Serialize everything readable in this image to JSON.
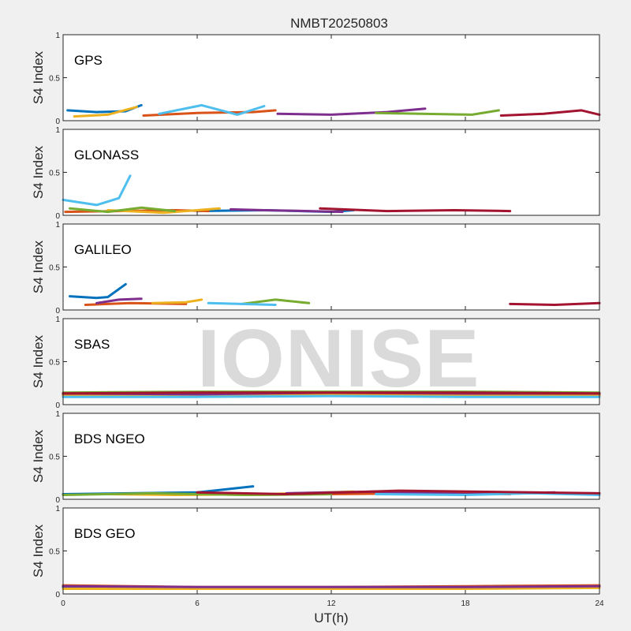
{
  "figure": {
    "title": "NMBT20250803",
    "xlabel": "UT(h)",
    "watermark": "IONISE"
  },
  "palette": [
    "#0072BD",
    "#D95319",
    "#EDB120",
    "#7E2F8E",
    "#77AC30",
    "#4DBEEE",
    "#A2142F"
  ],
  "chart_data": [
    {
      "type": "scatter",
      "panel_label": "GPS",
      "ylabel": "S4 Index",
      "xlim": [
        0,
        24
      ],
      "ylim": [
        0,
        1
      ],
      "xticks": [
        0,
        6,
        12,
        18,
        24
      ],
      "yticks": [
        0,
        0.5,
        1
      ],
      "ytick_labels": [
        "0",
        "0.5",
        "1"
      ],
      "series": [
        {
          "x": [
            0.2,
            1.5,
            2.8,
            3.5
          ],
          "y": [
            0.12,
            0.1,
            0.11,
            0.18
          ]
        },
        {
          "x": [
            3.6,
            6.0,
            8.5,
            9.5
          ],
          "y": [
            0.06,
            0.09,
            0.1,
            0.12
          ]
        },
        {
          "x": [
            0.5,
            2.0,
            3.3
          ],
          "y": [
            0.05,
            0.07,
            0.16
          ]
        },
        {
          "x": [
            9.6,
            12.0,
            14.5,
            16.2
          ],
          "y": [
            0.08,
            0.07,
            0.1,
            0.14
          ]
        },
        {
          "x": [
            14.0,
            16.0,
            18.3,
            19.5
          ],
          "y": [
            0.09,
            0.08,
            0.07,
            0.12
          ]
        },
        {
          "x": [
            4.3,
            6.2,
            7.8,
            9.0
          ],
          "y": [
            0.08,
            0.18,
            0.07,
            0.17
          ]
        },
        {
          "x": [
            19.6,
            21.5,
            23.2,
            24.0
          ],
          "y": [
            0.06,
            0.08,
            0.12,
            0.07
          ]
        }
      ]
    },
    {
      "type": "scatter",
      "panel_label": "GLONASS",
      "ylabel": "S4 Index",
      "xlim": [
        0,
        24
      ],
      "ylim": [
        0,
        1
      ],
      "xticks": [
        0,
        6,
        12,
        18,
        24
      ],
      "yticks": [
        0,
        0.5,
        1
      ],
      "ytick_labels": [
        "0",
        "0.5",
        "1"
      ],
      "series": [
        {
          "x": [
            6.0,
            9.0,
            12.0,
            13.0
          ],
          "y": [
            0.05,
            0.06,
            0.04,
            0.06
          ]
        },
        {
          "x": [
            0.1,
            2.5,
            5.0,
            6.5
          ],
          "y": [
            0.04,
            0.05,
            0.06,
            0.05
          ]
        },
        {
          "x": [
            2.0,
            4.5,
            7.0
          ],
          "y": [
            0.06,
            0.03,
            0.08
          ]
        },
        {
          "x": [
            7.5,
            9.0,
            11.0,
            12.5
          ],
          "y": [
            0.07,
            0.06,
            0.05,
            0.04
          ]
        },
        {
          "x": [
            0.3,
            2.0,
            3.5,
            5.0
          ],
          "y": [
            0.08,
            0.04,
            0.09,
            0.05
          ]
        },
        {
          "x": [
            0.0,
            1.5,
            2.5,
            3.0
          ],
          "y": [
            0.18,
            0.12,
            0.2,
            0.46
          ]
        },
        {
          "x": [
            11.5,
            14.5,
            17.5,
            20.0
          ],
          "y": [
            0.08,
            0.05,
            0.06,
            0.05
          ]
        }
      ]
    },
    {
      "type": "scatter",
      "panel_label": "GALILEO",
      "ylabel": "S4 Index",
      "xlim": [
        0,
        24
      ],
      "ylim": [
        0,
        1
      ],
      "xticks": [
        0,
        6,
        12,
        18,
        24
      ],
      "yticks": [
        0,
        0.5,
        1
      ],
      "ytick_labels": [
        "0",
        "0.5",
        "1"
      ],
      "series": [
        {
          "x": [
            0.3,
            1.5,
            2.0,
            2.8
          ],
          "y": [
            0.16,
            0.14,
            0.15,
            0.3
          ]
        },
        {
          "x": [
            1.0,
            3.0,
            5.5
          ],
          "y": [
            0.06,
            0.08,
            0.07
          ]
        },
        {
          "x": [
            4.0,
            5.5,
            6.2
          ],
          "y": [
            0.08,
            0.09,
            0.12
          ]
        },
        {
          "x": [
            1.5,
            2.5,
            3.5
          ],
          "y": [
            0.08,
            0.12,
            0.13
          ]
        },
        {
          "x": [
            8.0,
            9.5,
            11.0
          ],
          "y": [
            0.07,
            0.12,
            0.08
          ]
        },
        {
          "x": [
            6.5,
            8.0,
            9.5
          ],
          "y": [
            0.08,
            0.07,
            0.06
          ]
        },
        {
          "x": [
            20.0,
            22.0,
            24.0
          ],
          "y": [
            0.07,
            0.06,
            0.08
          ]
        }
      ]
    },
    {
      "type": "scatter",
      "panel_label": "SBAS",
      "ylabel": "S4 Index",
      "xlim": [
        0,
        24
      ],
      "ylim": [
        0,
        1
      ],
      "xticks": [
        0,
        6,
        12,
        18,
        24
      ],
      "yticks": [
        0,
        0.5,
        1
      ],
      "ytick_labels": [
        "0",
        "0.5",
        "1"
      ],
      "series": [
        {
          "x": [
            0.0,
            6.0,
            12.0,
            18.0,
            24.0
          ],
          "y": [
            0.12,
            0.13,
            0.13,
            0.13,
            0.12
          ]
        },
        {
          "x": [
            0.0,
            6.0,
            12.0,
            18.0,
            24.0
          ],
          "y": [
            0.11,
            0.11,
            0.12,
            0.12,
            0.11
          ]
        },
        {
          "x": [
            0.0,
            6.0,
            12.0,
            18.0,
            24.0
          ],
          "y": [
            0.1,
            0.1,
            0.11,
            0.1,
            0.1
          ]
        },
        {
          "x": [
            0.0,
            6.0,
            12.0,
            18.0,
            24.0
          ],
          "y": [
            0.13,
            0.12,
            0.14,
            0.13,
            0.13
          ]
        },
        {
          "x": [
            0.0,
            6.0,
            12.0,
            18.0,
            24.0
          ],
          "y": [
            0.14,
            0.15,
            0.15,
            0.15,
            0.14
          ]
        },
        {
          "x": [
            0.0,
            6.0,
            12.0,
            18.0,
            24.0
          ],
          "y": [
            0.09,
            0.09,
            0.1,
            0.09,
            0.09
          ]
        },
        {
          "x": [
            0.0,
            6.0,
            12.0,
            18.0,
            24.0
          ],
          "y": [
            0.13,
            0.14,
            0.14,
            0.14,
            0.13
          ]
        }
      ]
    },
    {
      "type": "scatter",
      "panel_label": "BDS NGEO",
      "ylabel": "S4 Index",
      "xlim": [
        0,
        24
      ],
      "ylim": [
        0,
        1
      ],
      "xticks": [
        0,
        6,
        12,
        18,
        24
      ],
      "yticks": [
        0,
        0.5,
        1
      ],
      "ytick_labels": [
        "0",
        "0.5",
        "1"
      ],
      "series": [
        {
          "x": [
            0.0,
            3.0,
            6.0,
            8.5
          ],
          "y": [
            0.06,
            0.07,
            0.08,
            0.15
          ]
        },
        {
          "x": [
            8.0,
            12.0,
            16.0,
            20.0
          ],
          "y": [
            0.05,
            0.06,
            0.07,
            0.06
          ]
        },
        {
          "x": [
            2.0,
            5.0,
            9.0,
            13.0
          ],
          "y": [
            0.06,
            0.05,
            0.06,
            0.09
          ]
        },
        {
          "x": [
            10.0,
            14.0,
            18.0,
            22.0
          ],
          "y": [
            0.07,
            0.09,
            0.06,
            0.08
          ]
        },
        {
          "x": [
            0.0,
            4.0,
            8.0,
            12.0
          ],
          "y": [
            0.05,
            0.07,
            0.05,
            0.06
          ]
        },
        {
          "x": [
            14.0,
            18.0,
            21.0,
            24.0
          ],
          "y": [
            0.06,
            0.05,
            0.07,
            0.05
          ]
        },
        {
          "x": [
            6.0,
            10.0,
            15.0,
            24.0
          ],
          "y": [
            0.08,
            0.06,
            0.1,
            0.07
          ]
        }
      ]
    },
    {
      "type": "scatter",
      "panel_label": "BDS GEO",
      "ylabel": "S4 Index",
      "xlim": [
        0,
        24
      ],
      "ylim": [
        0,
        1
      ],
      "xticks": [
        0,
        6,
        12,
        18,
        24
      ],
      "xtick_labels": [
        "0",
        "6",
        "12",
        "18",
        "24"
      ],
      "yticks": [
        0,
        0.5,
        1
      ],
      "ytick_labels": [
        "0",
        "0.5",
        "1"
      ],
      "series": [
        {
          "x": [
            0.0,
            6.0,
            12.0,
            18.0,
            24.0
          ],
          "y": [
            0.08,
            0.07,
            0.07,
            0.08,
            0.09
          ]
        },
        {
          "x": [
            0.0,
            6.0,
            12.0,
            18.0,
            24.0
          ],
          "y": [
            0.1,
            0.08,
            0.08,
            0.09,
            0.1
          ]
        },
        {
          "x": [
            0.0,
            6.0,
            12.0,
            18.0,
            24.0
          ],
          "y": [
            0.06,
            0.06,
            0.06,
            0.06,
            0.07
          ]
        },
        {
          "x": [
            0.0,
            6.0,
            12.0,
            18.0,
            24.0
          ],
          "y": [
            0.09,
            0.08,
            0.08,
            0.08,
            0.09
          ]
        }
      ]
    }
  ]
}
